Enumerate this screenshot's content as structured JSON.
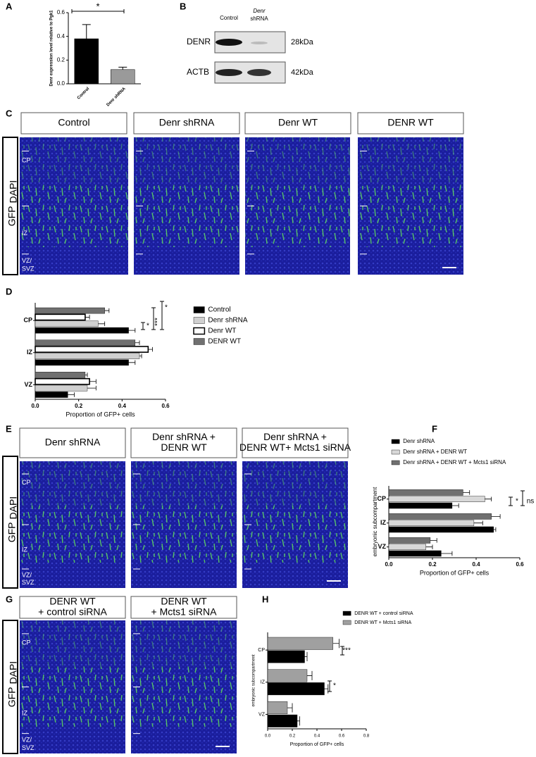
{
  "panel_labels": [
    "A",
    "B",
    "C",
    "D",
    "E",
    "F",
    "G",
    "H"
  ],
  "blot": {
    "lanes": [
      [
        "Control"
      ],
      [
        "Denr",
        "shRNA"
      ]
    ],
    "proteins": [
      "DENR",
      "ACTB"
    ],
    "sizes": [
      "28kDa",
      "42kDa"
    ]
  },
  "panel_c": {
    "headers": [
      [
        "Control"
      ],
      [
        "Denr shRNA"
      ],
      [
        "Denr WT"
      ],
      [
        "DENR WT"
      ]
    ],
    "stain": [
      "GFP",
      "DAPI"
    ],
    "regions": [
      "CP",
      "IZ",
      "VZ/",
      "SVZ"
    ]
  },
  "panel_e": {
    "headers": [
      [
        "Denr shRNA"
      ],
      [
        "Denr shRNA +",
        "DENR WT"
      ],
      [
        "Denr shRNA +",
        "DENR WT+ Mcts1 siRNA"
      ]
    ],
    "stain": [
      "GFP",
      "DAPI"
    ],
    "regions": [
      "CP",
      "IZ",
      "VZ/",
      "SVZ"
    ]
  },
  "panel_g": {
    "headers": [
      [
        "DENR WT",
        "+ control siRNA"
      ],
      [
        "DENR WT",
        "+ Mcts1 siRNA"
      ]
    ],
    "stain": [
      "GFP",
      "DAPI"
    ],
    "regions": [
      "CP",
      "IZ",
      "VZ/",
      "SVZ"
    ]
  },
  "chart_data": [
    {
      "type": "bar",
      "ylabel": "Denr expression level relative to Pgk1",
      "categories": [
        "Control",
        "Denr shRNA"
      ],
      "values": [
        0.38,
        0.12
      ],
      "errors": [
        0.12,
        0.02
      ],
      "colors": [
        "#000000",
        "#9a9a9a"
      ],
      "ylim": [
        0,
        0.6
      ],
      "yticks": [
        {
          "value": 0,
          "label": "0.0"
        },
        0.2,
        0.4,
        0.6
      ],
      "annotations": [
        "*"
      ]
    },
    {
      "type": "hbar",
      "xlabel": "Proportion of GFP+ cells",
      "categories": [
        "CP",
        "IZ",
        "VZ"
      ],
      "series": [
        {
          "name": "Control",
          "color": "#000000",
          "values": [
            0.43,
            0.43,
            0.15
          ],
          "errors": [
            0.03,
            0.03,
            0.03
          ]
        },
        {
          "name": "Denr shRNA",
          "color": "#d0d0d0",
          "values": [
            0.29,
            0.48,
            0.24
          ],
          "errors": [
            0.03,
            0.01,
            0.04
          ]
        },
        {
          "name": "Denr WT",
          "color": "#ffffff",
          "values": [
            0.23,
            0.52,
            0.25
          ],
          "errors": [
            0.02,
            0.02,
            0.03
          ]
        },
        {
          "name": "DENR WT",
          "color": "#707070",
          "values": [
            0.32,
            0.46,
            0.23
          ],
          "errors": [
            0.02,
            0.02,
            0.01
          ]
        }
      ],
      "xlim": [
        0,
        0.6
      ],
      "xticks": [
        {
          "value": 0,
          "label": "0.0"
        },
        0.2,
        0.4,
        0.6
      ],
      "annotations": [
        "*",
        "***",
        "*"
      ]
    },
    {
      "type": "hbar",
      "xlabel": "Proportion of GFP+ cells",
      "ylabel": "embryonic subcompartment",
      "categories": [
        "CP",
        "IZ",
        "VZ"
      ],
      "series": [
        {
          "name": "Denr shRNA",
          "color": "#000000",
          "values": [
            0.29,
            0.48,
            0.24
          ],
          "errors": [
            0.03,
            0.01,
            0.05
          ]
        },
        {
          "name": "Denr shRNA + DENR WT",
          "color": "#d8d8d8",
          "values": [
            0.44,
            0.39,
            0.17
          ],
          "errors": [
            0.03,
            0.04,
            0.03
          ]
        },
        {
          "name": "Denr shRNA + DENR WT + Mcts1 siRNA",
          "color": "#707070",
          "values": [
            0.34,
            0.47,
            0.19
          ],
          "errors": [
            0.03,
            0.04,
            0.03
          ]
        }
      ],
      "xlim": [
        0,
        0.6
      ],
      "xticks": [
        {
          "value": 0,
          "label": "0.0"
        },
        0.2,
        0.4,
        0.6
      ],
      "annotations": [
        "*",
        "ns"
      ]
    },
    {
      "type": "hbar",
      "xlabel": "Proportion of GFP+ cells",
      "ylabel": "embryonic subcompartment",
      "categories": [
        "CP",
        "IZ",
        "VZ"
      ],
      "series": [
        {
          "name": "DENR WT + control siRNA",
          "color": "#000000",
          "values": [
            0.3,
            0.46,
            0.24
          ],
          "errors": [
            0.02,
            0.03,
            0.02
          ]
        },
        {
          "name": "DENR WT + Mcts1 siRNA",
          "color": "#a0a0a0",
          "values": [
            0.53,
            0.32,
            0.16
          ],
          "errors": [
            0.05,
            0.04,
            0.04
          ]
        }
      ],
      "xlim": [
        0,
        0.8
      ],
      "xticks": [
        {
          "value": 0,
          "label": "0.0"
        },
        0.2,
        0.4,
        0.6,
        0.8
      ],
      "annotations": [
        "***",
        "*"
      ]
    }
  ]
}
